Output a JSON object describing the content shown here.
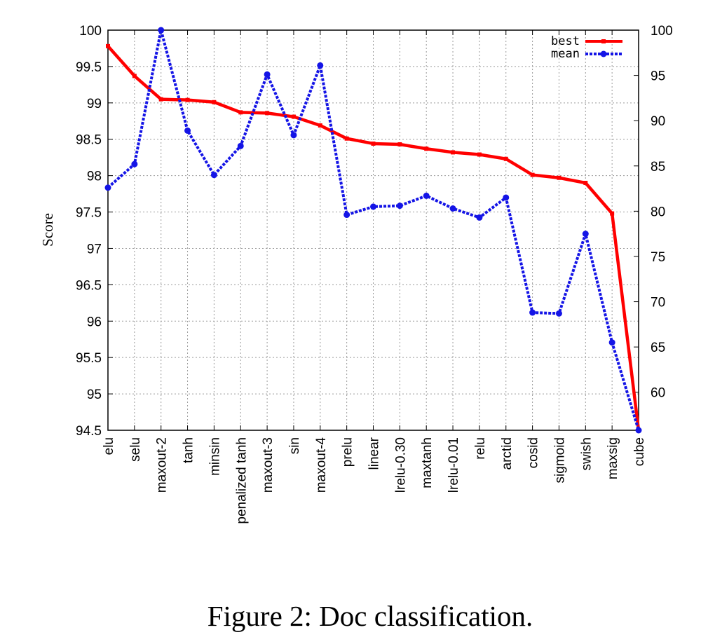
{
  "chart_data": {
    "type": "line",
    "title": "",
    "xlabel": "",
    "ylabel": "Score",
    "ylim": [
      94.5,
      100
    ],
    "y2lim": [
      55.8,
      100
    ],
    "yticks": [
      94.5,
      95,
      95.5,
      96,
      96.5,
      97,
      97.5,
      98,
      98.5,
      99,
      99.5,
      100
    ],
    "y2ticks": [
      60,
      65,
      70,
      75,
      80,
      85,
      90,
      95,
      100
    ],
    "grid": true,
    "legend_position": "top-right",
    "categories": [
      "elu",
      "selu",
      "maxout-2",
      "tanh",
      "minsin",
      "penalized tanh",
      "maxout-3",
      "sin",
      "maxout-4",
      "prelu",
      "linear",
      "lrelu-0.30",
      "maxtanh",
      "lrelu-0.01",
      "relu",
      "arctid",
      "cosid",
      "sigmoid",
      "swish",
      "maxsig",
      "cube"
    ],
    "series": [
      {
        "name": "best",
        "axis": "left",
        "color": "#ff0000",
        "values": [
          99.78,
          99.37,
          99.05,
          99.04,
          99.01,
          98.87,
          98.86,
          98.81,
          98.69,
          98.51,
          98.44,
          98.43,
          98.37,
          98.32,
          98.29,
          98.23,
          98.01,
          97.97,
          97.9,
          97.48,
          94.5
        ]
      },
      {
        "name": "mean",
        "axis": "right",
        "color": "#1414e6",
        "values": [
          82.6,
          85.2,
          100.0,
          88.9,
          84.0,
          87.2,
          95.1,
          88.4,
          96.1,
          79.6,
          80.5,
          80.6,
          81.7,
          80.3,
          79.3,
          81.5,
          68.8,
          68.7,
          77.5,
          65.5,
          55.8
        ]
      }
    ]
  },
  "caption": "Figure 2: Doc classification."
}
